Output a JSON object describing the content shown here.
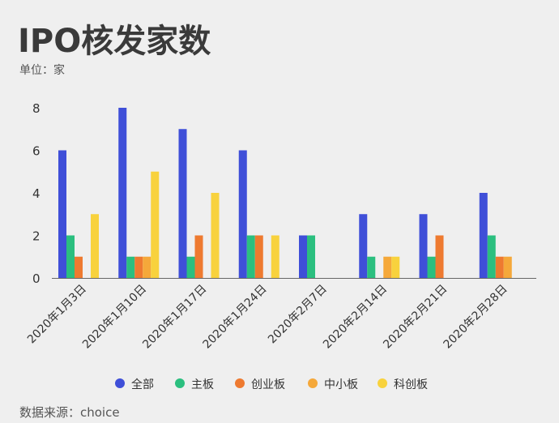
{
  "header": {
    "title": "IPO核发家数",
    "unit": "单位：家"
  },
  "footer": {
    "source": "数据来源：choice"
  },
  "colors": {
    "全部": "#3f4fd8",
    "主板": "#2bbf7f",
    "创业板": "#ee7a30",
    "中小板": "#f5a83a",
    "科创板": "#f8d23d"
  },
  "chart_data": {
    "type": "bar",
    "title": "IPO核发家数",
    "ylabel": "单位：家",
    "ylim": [
      0,
      8
    ],
    "yticks": [
      0,
      2,
      4,
      6,
      8
    ],
    "grid": false,
    "legend_position": "bottom",
    "categories": [
      "2020年1月3日",
      "2020年1月10日",
      "2020年1月17日",
      "2020年1月24日",
      "2020年2月7日",
      "2020年2月14日",
      "2020年2月21日",
      "2020年2月28日"
    ],
    "series": [
      {
        "name": "全部",
        "values": [
          6,
          8,
          7,
          6,
          2,
          3,
          3,
          4
        ]
      },
      {
        "name": "主板",
        "values": [
          2,
          1,
          1,
          2,
          2,
          1,
          1,
          2
        ]
      },
      {
        "name": "创业板",
        "values": [
          1,
          1,
          2,
          2,
          0,
          0,
          2,
          1
        ]
      },
      {
        "name": "中小板",
        "values": [
          0,
          1,
          0,
          0,
          0,
          1,
          0,
          1
        ]
      },
      {
        "name": "科创板",
        "values": [
          3,
          5,
          4,
          2,
          0,
          1,
          0,
          0
        ]
      }
    ]
  }
}
